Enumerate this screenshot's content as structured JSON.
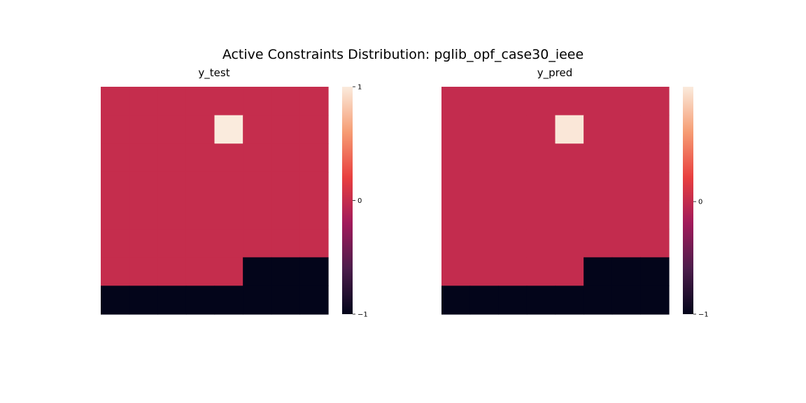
{
  "title": "Active Constraints Distribution: pglib_opf_case30_ieee",
  "colormap": {
    "name": "rocket",
    "stops": [
      "#03051a",
      "#4c1d4b",
      "#a11a5b",
      "#e83f3f",
      "#f69c73",
      "#faebdd"
    ]
  },
  "chart_data": [
    {
      "type": "heatmap",
      "title": "y_test",
      "rows": 8,
      "cols": 8,
      "values": [
        [
          0,
          0,
          0,
          0,
          0,
          0,
          0,
          0
        ],
        [
          0,
          0,
          0,
          0,
          1,
          0,
          0,
          0
        ],
        [
          0,
          0,
          0,
          0,
          0,
          0,
          0,
          0
        ],
        [
          0,
          0,
          0,
          0,
          0,
          0,
          0,
          0
        ],
        [
          0,
          0,
          0,
          0,
          0,
          0,
          0,
          0
        ],
        [
          0,
          0,
          0,
          0,
          0,
          0,
          0,
          0
        ],
        [
          0,
          0,
          0,
          0,
          0,
          -1,
          -1,
          -1
        ],
        [
          -1,
          -1,
          -1,
          -1,
          -1,
          -1,
          -1,
          -1
        ]
      ],
      "vmin": -1,
      "vmax": 1,
      "colorbar_ticks": [
        {
          "value": 1,
          "label": "1"
        },
        {
          "value": 0,
          "label": "0"
        },
        {
          "value": -1,
          "label": "−1"
        }
      ],
      "xlabel": "",
      "ylabel": ""
    },
    {
      "type": "heatmap",
      "title": "y_pred",
      "rows": 8,
      "cols": 8,
      "values": [
        [
          0,
          0,
          0,
          0,
          0,
          0,
          0,
          0
        ],
        [
          0,
          0,
          0,
          0,
          1,
          0,
          0,
          0
        ],
        [
          0,
          0,
          0,
          0,
          0,
          0,
          0,
          0
        ],
        [
          0,
          0,
          0,
          0,
          0,
          0,
          0,
          0
        ],
        [
          0,
          0,
          0,
          0,
          0,
          0,
          0,
          0
        ],
        [
          0,
          0,
          0,
          0,
          0,
          0,
          0,
          0
        ],
        [
          0,
          0,
          0,
          0,
          0,
          -1,
          -1,
          -1
        ],
        [
          -1,
          -1,
          -1,
          -1,
          -1,
          -1,
          -1,
          -1
        ]
      ],
      "vmin": -1,
      "vmax": 1.0202,
      "colorbar_ticks": [
        {
          "value": 0,
          "label": "0"
        },
        {
          "value": -1,
          "label": "−1"
        }
      ],
      "xlabel": "",
      "ylabel": ""
    }
  ]
}
